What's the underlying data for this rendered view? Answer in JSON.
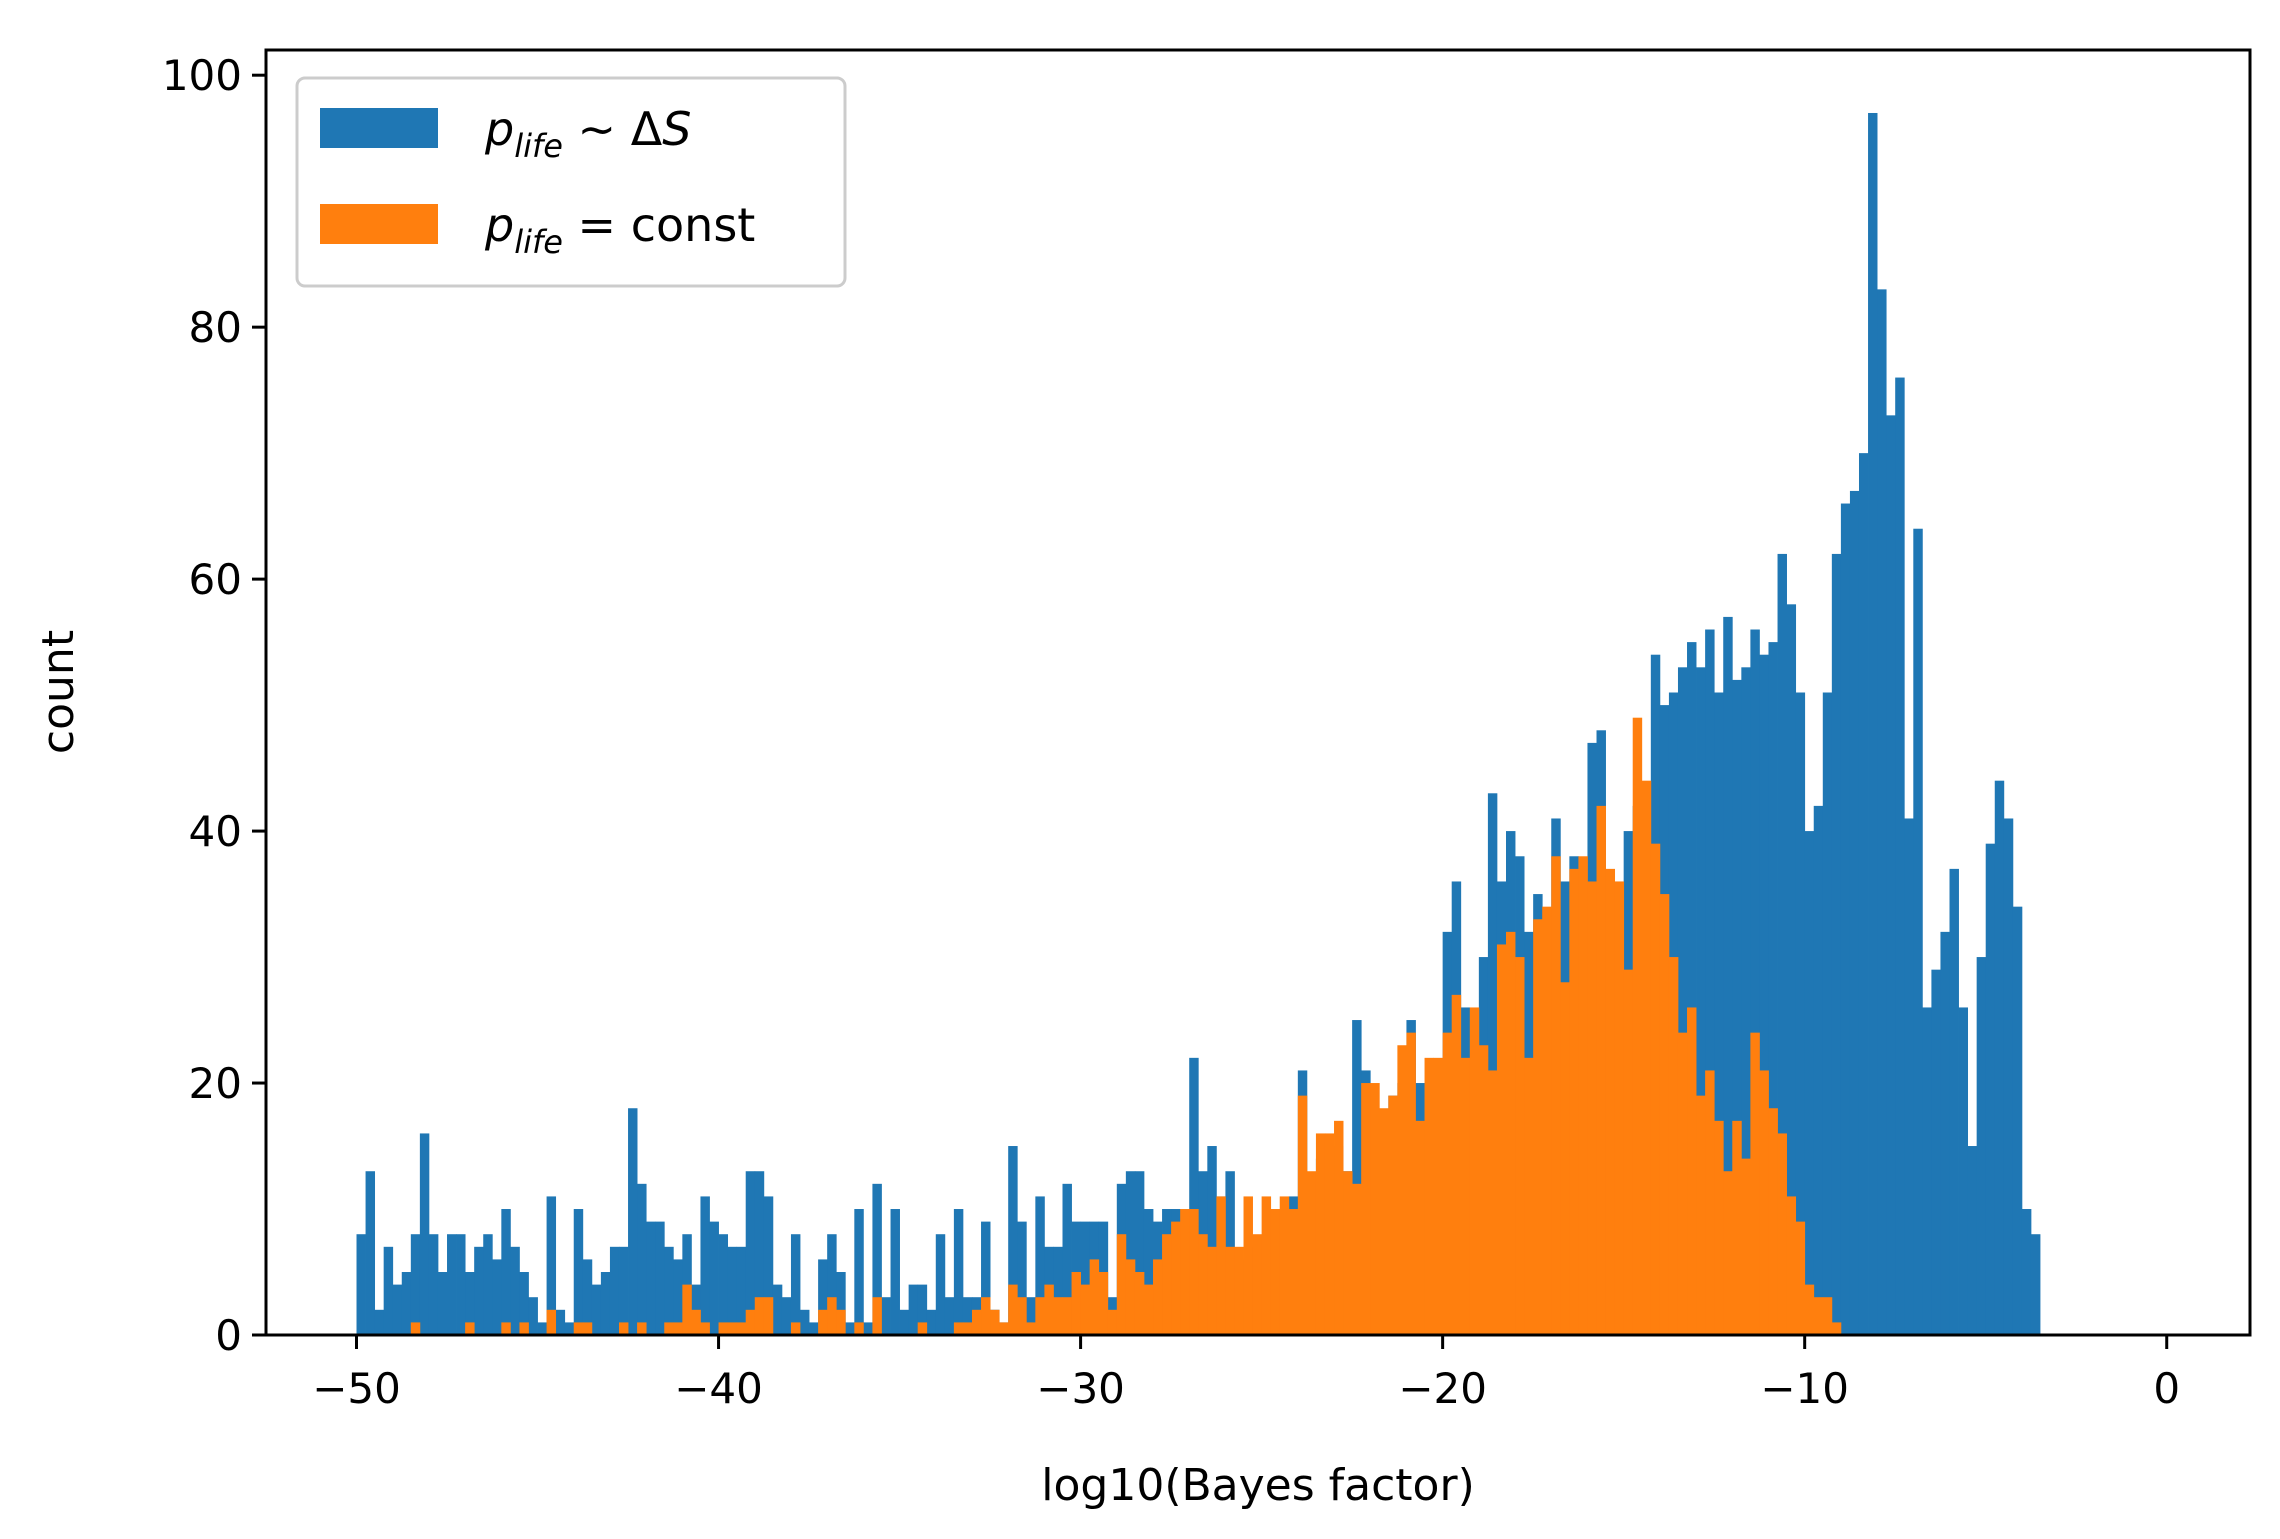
{
  "chart_data": {
    "type": "bar",
    "subtype": "histogram-overlay",
    "xlabel": "log10(Bayes factor)",
    "ylabel": "count",
    "xlim": [
      -52.5,
      2.3
    ],
    "ylim": [
      0,
      102
    ],
    "xticks": [
      -50,
      -40,
      -30,
      -20,
      -10,
      0
    ],
    "xtick_labels": [
      "−50",
      "−40",
      "−30",
      "−20",
      "−10",
      "0"
    ],
    "yticks": [
      0,
      20,
      40,
      60,
      80,
      100
    ],
    "ytick_labels": [
      "0",
      "20",
      "40",
      "60",
      "80",
      "100"
    ],
    "grid": false,
    "legend_position": "upper-left",
    "bin_start": -50.0,
    "bin_width": 0.25,
    "series": [
      {
        "name": "p_life ~ ΔS",
        "color": "#1f77b4",
        "values": [
          8,
          13,
          2,
          7,
          4,
          5,
          8,
          16,
          8,
          5,
          8,
          8,
          5,
          7,
          8,
          6,
          10,
          7,
          5,
          3,
          1,
          11,
          2,
          1,
          10,
          6,
          4,
          5,
          7,
          7,
          18,
          12,
          9,
          9,
          7,
          6,
          8,
          4,
          11,
          9,
          8,
          7,
          7,
          13,
          13,
          11,
          4,
          3,
          8,
          2,
          1,
          6,
          8,
          5,
          1,
          10,
          1,
          12,
          3,
          10,
          2,
          4,
          4,
          2,
          8,
          3,
          10,
          3,
          3,
          9,
          2,
          1,
          15,
          9,
          3,
          11,
          7,
          7,
          12,
          9,
          9,
          9,
          9,
          3,
          12,
          13,
          13,
          10,
          9,
          10,
          10,
          7,
          22,
          13,
          15,
          11,
          13,
          4,
          6,
          7,
          7,
          7,
          7,
          11,
          21,
          11,
          14,
          14,
          15,
          13,
          25,
          21,
          9,
          13,
          19,
          20,
          25,
          20,
          14,
          19,
          32,
          36,
          26,
          21,
          30,
          43,
          36,
          40,
          38,
          32,
          35,
          28,
          41,
          36,
          38,
          37,
          47,
          48,
          35,
          36,
          40,
          42,
          34,
          54,
          50,
          51,
          53,
          55,
          53,
          56,
          51,
          57,
          52,
          53,
          56,
          54,
          55,
          62,
          58,
          51,
          40,
          42,
          51,
          62,
          66,
          67,
          70,
          97,
          83,
          73,
          76,
          41,
          64,
          26,
          29,
          32,
          37,
          26,
          15,
          30,
          39,
          44,
          41,
          34,
          10,
          8,
          0,
          0,
          0,
          0,
          0,
          0,
          0,
          0,
          0,
          0,
          0,
          0,
          0,
          0,
          0,
          0,
          0,
          0,
          0,
          0,
          0,
          0,
          0,
          0,
          0,
          0,
          0,
          0,
          0,
          0,
          0,
          0,
          0,
          0,
          0,
          0
        ]
      },
      {
        "name": "p_life = const",
        "color": "#ff7f0e",
        "values": [
          0,
          0,
          0,
          0,
          0,
          0,
          1,
          0,
          0,
          0,
          0,
          0,
          1,
          0,
          0,
          0,
          1,
          0,
          1,
          0,
          0,
          2,
          0,
          0,
          1,
          1,
          0,
          0,
          0,
          1,
          0,
          1,
          0,
          0,
          1,
          1,
          4,
          2,
          1,
          0,
          1,
          1,
          1,
          2,
          3,
          3,
          0,
          0,
          1,
          0,
          0,
          2,
          3,
          2,
          0,
          1,
          0,
          3,
          0,
          0,
          0,
          0,
          1,
          0,
          0,
          0,
          1,
          1,
          2,
          3,
          2,
          1,
          4,
          3,
          1,
          3,
          4,
          3,
          3,
          5,
          4,
          6,
          5,
          2,
          8,
          6,
          5,
          4,
          6,
          8,
          9,
          10,
          10,
          8,
          7,
          11,
          7,
          7,
          11,
          8,
          11,
          10,
          11,
          10,
          19,
          13,
          16,
          16,
          17,
          13,
          12,
          20,
          20,
          18,
          19,
          23,
          24,
          17,
          22,
          22,
          24,
          27,
          22,
          26,
          23,
          21,
          31,
          32,
          30,
          22,
          33,
          34,
          38,
          28,
          37,
          38,
          36,
          42,
          37,
          36,
          29,
          49,
          44,
          39,
          35,
          30,
          24,
          26,
          19,
          21,
          17,
          13,
          17,
          14,
          24,
          21,
          18,
          16,
          11,
          9,
          4,
          3,
          3,
          1,
          0,
          0,
          0,
          0,
          0,
          0,
          0,
          0,
          0,
          0,
          0,
          0,
          0,
          0,
          0,
          0,
          0,
          0,
          0,
          0,
          0,
          0,
          0,
          0,
          0,
          0,
          0,
          0,
          0,
          0,
          0,
          0,
          0,
          0,
          0,
          0,
          0,
          0,
          0,
          0,
          0,
          0,
          0,
          0,
          0,
          0,
          0,
          0,
          0,
          0
        ]
      }
    ],
    "legend": {
      "entries": [
        {
          "italic": "p",
          "sub": "life",
          "rest": " ∼ Δ",
          "rest_italic": "S",
          "color": "#1f77b4"
        },
        {
          "italic": "p",
          "sub": "life",
          "rest": " = const",
          "rest_italic": "",
          "color": "#ff7f0e"
        }
      ]
    }
  }
}
